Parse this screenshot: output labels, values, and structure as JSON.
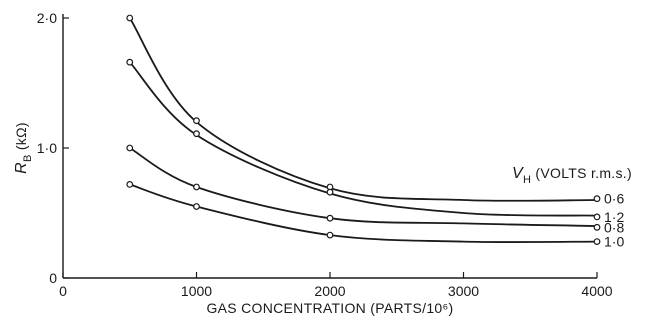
{
  "chart_data": {
    "type": "line",
    "title": "",
    "xlabel": "GAS CONCENTRATION (PARTS/10⁶)",
    "ylabel_main": "R",
    "ylabel_sub": "B",
    "ylabel_unit": " (kΩ)",
    "xlim": [
      0,
      4000
    ],
    "ylim": [
      0,
      2.0
    ],
    "grid": false,
    "x_ticks": [
      0,
      1000,
      2000,
      3000,
      4000
    ],
    "x_tick_labels": [
      "0",
      "1000",
      "2000",
      "3000",
      "4000"
    ],
    "y_ticks": [
      0,
      1.0,
      2.0
    ],
    "y_tick_labels": [
      "0",
      "1·0",
      "2·0"
    ],
    "legend_title_main": "V",
    "legend_title_sub": "H",
    "legend_title_rest": " (VOLTS r.m.s.)",
    "series": [
      {
        "name": "0·6",
        "curve": [
          [
            500,
            2.0
          ],
          [
            1000,
            1.2
          ],
          [
            2000,
            0.69
          ],
          [
            3000,
            0.6
          ],
          [
            4000,
            0.6
          ]
        ],
        "points": [
          [
            500,
            2.0
          ],
          [
            1000,
            1.21
          ],
          [
            2000,
            0.7
          ],
          [
            4000,
            0.61
          ]
        ]
      },
      {
        "name": "1·2",
        "curve": [
          [
            500,
            1.66
          ],
          [
            1000,
            1.1
          ],
          [
            2000,
            0.65
          ],
          [
            3000,
            0.5
          ],
          [
            4000,
            0.48
          ]
        ],
        "points": [
          [
            500,
            1.66
          ],
          [
            1000,
            1.11
          ],
          [
            2000,
            0.66
          ],
          [
            4000,
            0.47
          ]
        ]
      },
      {
        "name": "0·8",
        "curve": [
          [
            500,
            1.0
          ],
          [
            1000,
            0.7
          ],
          [
            2000,
            0.46
          ],
          [
            3000,
            0.42
          ],
          [
            4000,
            0.4
          ]
        ],
        "points": [
          [
            500,
            1.0
          ],
          [
            1000,
            0.7
          ],
          [
            2000,
            0.46
          ],
          [
            4000,
            0.39
          ]
        ]
      },
      {
        "name": "1·0",
        "curve": [
          [
            500,
            0.72
          ],
          [
            1000,
            0.55
          ],
          [
            2000,
            0.33
          ],
          [
            3000,
            0.28
          ],
          [
            4000,
            0.28
          ]
        ],
        "points": [
          [
            500,
            0.72
          ],
          [
            1000,
            0.55
          ],
          [
            2000,
            0.33
          ],
          [
            4000,
            0.28
          ]
        ]
      }
    ]
  }
}
